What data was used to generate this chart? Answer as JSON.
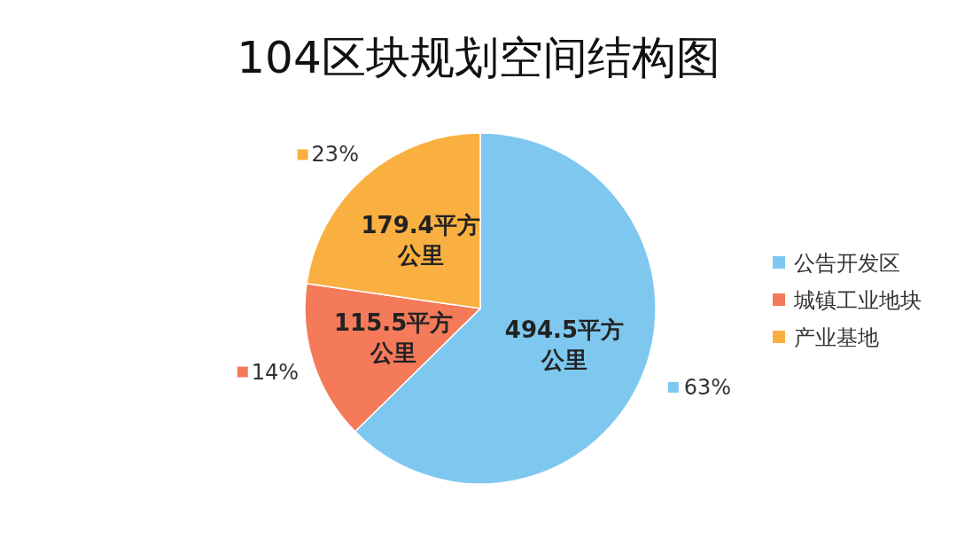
{
  "chart_data": {
    "type": "pie",
    "title": "104区块规划空间结构图",
    "categories": [
      "公告开发区",
      "城镇工业地块",
      "产业基地"
    ],
    "values": [
      494.5,
      115.5,
      179.4
    ],
    "colors": [
      "#7ec8ef",
      "#f47a5a",
      "#f9b040"
    ],
    "value_labels": [
      "494.5平方公里",
      "115.5平方公里",
      "179.4平方公里"
    ],
    "annotations": [
      {
        "text": "63%",
        "x": "公告开发区"
      },
      {
        "text": "14%",
        "x": "城镇工业地块"
      },
      {
        "text": "23%",
        "x": "产业基地"
      }
    ],
    "legend": "right"
  }
}
